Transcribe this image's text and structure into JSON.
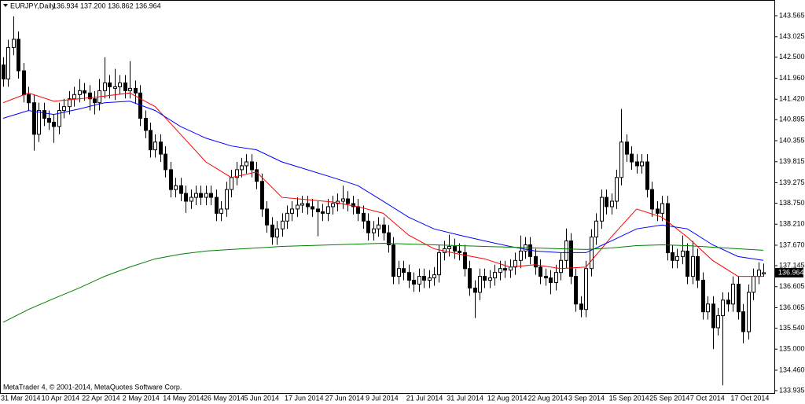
{
  "chart_data": {
    "type": "candlestick",
    "title": "EURJPY,Daily",
    "subtitle": "136.934 137.200 136.862 136.964",
    "credit": "MetaTrader 4, © 2001-2014, MetaQuotes Software Corp.",
    "grid": false,
    "up_color": "#ffffff",
    "down_color": "#000000",
    "last_price": 136.964,
    "ylim": [
      133.874,
      143.969
    ],
    "yticks": [
      {
        "value": 143.565,
        "label": "143.565"
      },
      {
        "value": 143.025,
        "label": "143.025"
      },
      {
        "value": 142.5,
        "label": "142.500"
      },
      {
        "value": 141.96,
        "label": "141.960"
      },
      {
        "value": 141.42,
        "label": "141.420"
      },
      {
        "value": 140.895,
        "label": "140.895"
      },
      {
        "value": 140.355,
        "label": "140.355"
      },
      {
        "value": 139.815,
        "label": "139.815"
      },
      {
        "value": 139.275,
        "label": "139.275"
      },
      {
        "value": 138.75,
        "label": "138.750"
      },
      {
        "value": 138.21,
        "label": "138.210"
      },
      {
        "value": 137.67,
        "label": "137.670"
      },
      {
        "value": 137.145,
        "label": "137.145"
      },
      {
        "value": 136.605,
        "label": "136.605"
      },
      {
        "value": 136.065,
        "label": "136.065"
      },
      {
        "value": 135.54,
        "label": "135.540"
      },
      {
        "value": 135.0,
        "label": "135.000"
      },
      {
        "value": 134.46,
        "label": "134.460"
      },
      {
        "value": 133.935,
        "label": "133.935"
      }
    ],
    "categories": [
      "31 Mar 2014",
      null,
      null,
      null,
      null,
      null,
      null,
      null,
      "10 Apr 2014",
      null,
      null,
      null,
      null,
      null,
      null,
      null,
      "22 Apr 2014",
      null,
      null,
      null,
      null,
      null,
      null,
      null,
      "2 May 2014",
      null,
      null,
      null,
      null,
      null,
      null,
      null,
      "14 May 2014",
      null,
      null,
      null,
      null,
      null,
      null,
      null,
      "26 May 2014",
      null,
      null,
      null,
      null,
      null,
      null,
      null,
      "5 Jun 2014",
      null,
      null,
      null,
      null,
      null,
      null,
      null,
      "17 Jun 2014",
      null,
      null,
      null,
      null,
      null,
      null,
      null,
      "27 Jun 2014",
      null,
      null,
      null,
      null,
      null,
      null,
      null,
      "9 Jul 2014",
      null,
      null,
      null,
      null,
      null,
      null,
      null,
      "21 Jul 2014",
      null,
      null,
      null,
      null,
      null,
      null,
      null,
      "31 Jul 2014",
      null,
      null,
      null,
      null,
      null,
      null,
      null,
      "12 Aug 2014",
      null,
      null,
      null,
      null,
      null,
      null,
      null,
      "22 Aug 2014",
      null,
      null,
      null,
      null,
      null,
      null,
      null,
      "3 Sep 2014",
      null,
      null,
      null,
      null,
      null,
      null,
      null,
      "15 Sep 2014",
      null,
      null,
      null,
      null,
      null,
      null,
      null,
      "25 Sep 2014",
      null,
      null,
      null,
      null,
      null,
      null,
      null,
      "7 Oct 2014",
      null,
      null,
      null,
      null,
      null,
      null,
      null,
      "17 Oct 2014",
      null,
      null,
      null,
      null,
      null,
      null
    ],
    "open": [
      142.3,
      141.94,
      142.75,
      142.96,
      142.15,
      141.54,
      141.33,
      140.52,
      141.13,
      140.93,
      140.83,
      140.72,
      141.13,
      141.23,
      141.43,
      141.54,
      141.64,
      141.58,
      141.43,
      141.33,
      141.64,
      141.84,
      141.7,
      141.74,
      141.84,
      141.64,
      141.7,
      141.58,
      140.93,
      140.62,
      140.12,
      140.32,
      140.01,
      139.61,
      139.1,
      139.2,
      139.0,
      138.8,
      138.9,
      139.0,
      138.9,
      139.0,
      138.9,
      138.49,
      138.6,
      139.1,
      139.41,
      139.61,
      139.71,
      139.81,
      139.61,
      139.31,
      138.6,
      138.19,
      137.88,
      138.09,
      138.29,
      138.49,
      138.6,
      138.7,
      138.74,
      138.66,
      138.6,
      138.53,
      138.49,
      138.66,
      138.74,
      138.8,
      138.86,
      138.74,
      138.66,
      138.49,
      138.29,
      137.99,
      138.09,
      138.19,
      137.99,
      137.68,
      136.87,
      137.07,
      136.97,
      136.77,
      136.67,
      136.87,
      136.77,
      136.83,
      136.91,
      137.48,
      137.58,
      137.64,
      137.52,
      137.48,
      137.07,
      136.57,
      136.46,
      136.87,
      136.77,
      136.83,
      136.97,
      137.07,
      137.03,
      137.11,
      137.28,
      137.52,
      137.68,
      137.38,
      137.11,
      136.87,
      136.83,
      136.71,
      136.97,
      137.28,
      137.78,
      136.87,
      136.16,
      136.02,
      137.07,
      137.88,
      138.29,
      138.9,
      138.66,
      138.8,
      139.41,
      140.32,
      140.01,
      139.81,
      139.71,
      139.81,
      139.1,
      138.6,
      138.49,
      138.74,
      137.48,
      137.28,
      137.38,
      137.52,
      136.87,
      137.38,
      136.77,
      135.96,
      136.16,
      135.55,
      135.86,
      136.26,
      136.16,
      136.67,
      135.96,
      135.45,
      136.46,
      136.87,
      136.934
    ],
    "high": [
      142.5,
      142.95,
      143.55,
      143.16,
      142.35,
      141.74,
      141.53,
      141.33,
      141.33,
      141.13,
      141.03,
      141.33,
      141.43,
      141.63,
      141.74,
      141.94,
      141.84,
      141.78,
      141.63,
      141.94,
      142.5,
      142.04,
      142.2,
      142.04,
      142.04,
      142.4,
      141.9,
      141.78,
      141.13,
      140.82,
      140.52,
      140.52,
      140.21,
      139.81,
      139.4,
      139.4,
      139.2,
      139.1,
      139.2,
      139.2,
      139.2,
      139.2,
      139.1,
      138.8,
      139.3,
      139.61,
      139.81,
      139.91,
      140.01,
      140.01,
      139.81,
      139.51,
      138.8,
      138.39,
      138.29,
      138.49,
      138.69,
      138.8,
      138.9,
      138.94,
      138.94,
      138.86,
      138.8,
      138.73,
      138.86,
      138.94,
      139.0,
      139.2,
      139.06,
      138.94,
      138.86,
      138.69,
      138.49,
      138.29,
      138.39,
      138.39,
      138.19,
      137.88,
      137.27,
      137.27,
      137.17,
      136.97,
      137.07,
      137.07,
      137.03,
      137.11,
      137.68,
      137.78,
      137.94,
      137.84,
      137.72,
      137.68,
      137.27,
      136.77,
      137.07,
      137.07,
      137.03,
      137.17,
      137.27,
      137.27,
      137.31,
      137.48,
      137.92,
      137.88,
      137.88,
      137.58,
      137.31,
      137.07,
      137.03,
      137.17,
      137.48,
      138.1,
      137.98,
      137.07,
      136.36,
      137.27,
      138.08,
      138.49,
      139.1,
      139.1,
      139.0,
      139.61,
      141.17,
      140.52,
      140.21,
      140.01,
      140.01,
      140.01,
      139.3,
      138.8,
      138.94,
      138.94,
      137.68,
      137.58,
      137.92,
      137.72,
      137.78,
      137.58,
      136.97,
      136.36,
      136.36,
      136.06,
      136.46,
      136.46,
      136.87,
      136.87,
      136.16,
      136.66,
      137.07,
      137.23,
      137.2
    ],
    "low": [
      141.74,
      141.74,
      142.55,
      141.95,
      141.34,
      141.13,
      140.1,
      140.32,
      140.73,
      140.63,
      140.3,
      140.52,
      140.93,
      141.03,
      141.23,
      141.34,
      141.38,
      141.13,
      141.03,
      141.13,
      141.44,
      141.44,
      141.4,
      141.54,
      141.44,
      141.44,
      141.3,
      140.73,
      140.42,
      139.92,
      139.92,
      139.81,
      139.41,
      138.9,
      138.9,
      138.8,
      138.5,
      138.6,
      138.7,
      138.7,
      138.7,
      138.7,
      138.29,
      138.29,
      138.4,
      138.9,
      139.21,
      139.41,
      139.51,
      139.41,
      139.11,
      138.4,
      137.99,
      137.68,
      137.68,
      137.89,
      138.09,
      138.29,
      138.4,
      138.5,
      138.46,
      138.4,
      137.9,
      138.29,
      138.29,
      138.46,
      138.54,
      138.6,
      138.54,
      138.46,
      138.29,
      138.09,
      137.79,
      137.79,
      137.89,
      137.79,
      137.48,
      136.67,
      136.67,
      136.77,
      136.57,
      136.47,
      136.47,
      136.57,
      136.57,
      136.63,
      136.71,
      137.28,
      137.38,
      137.32,
      137.28,
      136.87,
      136.37,
      135.8,
      136.26,
      136.57,
      136.57,
      136.63,
      136.77,
      136.83,
      136.83,
      136.91,
      137.08,
      137.32,
      137.18,
      136.91,
      136.67,
      136.63,
      136.41,
      136.51,
      136.77,
      137.08,
      136.67,
      135.96,
      135.82,
      135.82,
      136.87,
      137.68,
      138.09,
      138.46,
      138.46,
      138.6,
      139.21,
      139.81,
      139.61,
      139.51,
      139.51,
      138.9,
      138.4,
      138.29,
      138.29,
      137.28,
      137.08,
      137.08,
      137.18,
      136.67,
      136.67,
      136.57,
      135.76,
      135.76,
      135.0,
      135.35,
      134.07,
      135.96,
      135.96,
      135.76,
      135.15,
      135.25,
      136.26,
      136.67,
      136.862
    ],
    "close": [
      141.94,
      142.75,
      142.96,
      142.15,
      141.54,
      141.33,
      140.52,
      141.13,
      140.93,
      140.83,
      140.72,
      141.13,
      141.23,
      141.43,
      141.54,
      141.64,
      141.58,
      141.43,
      141.33,
      141.64,
      141.84,
      141.74,
      141.74,
      141.84,
      141.64,
      141.7,
      141.58,
      140.93,
      140.62,
      140.12,
      140.32,
      140.01,
      139.61,
      139.1,
      139.2,
      139.0,
      138.8,
      138.9,
      139.0,
      138.9,
      139.0,
      138.9,
      138.49,
      138.6,
      139.1,
      139.41,
      139.61,
      139.71,
      139.81,
      139.61,
      139.31,
      138.6,
      138.19,
      137.88,
      138.09,
      138.29,
      138.49,
      138.6,
      138.7,
      138.74,
      138.66,
      138.6,
      138.53,
      138.49,
      138.66,
      138.74,
      138.8,
      138.86,
      138.74,
      138.66,
      138.49,
      138.29,
      137.99,
      138.09,
      138.19,
      137.99,
      137.68,
      136.87,
      137.07,
      136.97,
      136.77,
      136.67,
      136.87,
      136.77,
      136.83,
      136.91,
      137.48,
      137.58,
      137.64,
      137.52,
      137.48,
      137.07,
      136.57,
      136.46,
      136.87,
      136.77,
      136.83,
      136.97,
      137.07,
      137.03,
      137.11,
      137.28,
      137.52,
      137.68,
      137.38,
      137.11,
      136.87,
      136.83,
      136.71,
      136.97,
      137.28,
      137.78,
      136.87,
      136.16,
      136.02,
      137.07,
      137.88,
      138.29,
      138.9,
      138.66,
      138.8,
      139.41,
      140.32,
      140.01,
      139.81,
      139.71,
      139.81,
      139.1,
      138.6,
      138.49,
      138.74,
      137.48,
      137.28,
      137.38,
      137.52,
      136.87,
      137.38,
      136.77,
      135.96,
      136.16,
      135.55,
      135.86,
      136.26,
      136.16,
      136.67,
      135.96,
      135.45,
      136.46,
      136.87,
      137.03,
      136.964
    ],
    "series": [
      {
        "color": "#ff0000",
        "x": [
          0,
          5,
          10,
          15,
          20,
          25,
          30,
          35,
          40,
          45,
          50,
          55,
          60,
          65,
          70,
          75,
          80,
          85,
          90,
          95,
          100,
          105,
          110,
          115,
          120,
          125,
          130,
          135,
          140,
          145,
          150
        ],
        "values": [
          141.33,
          141.58,
          141.37,
          141.43,
          141.5,
          141.58,
          141.23,
          140.52,
          139.81,
          139.41,
          139.55,
          138.9,
          138.84,
          138.78,
          138.66,
          138.49,
          137.93,
          137.58,
          137.44,
          137.32,
          137.11,
          137.17,
          137.07,
          137.11,
          137.88,
          138.6,
          138.39,
          137.88,
          137.28,
          136.87,
          136.87
        ]
      },
      {
        "color": "#0000ff",
        "x": [
          0,
          5,
          10,
          15,
          20,
          25,
          30,
          35,
          40,
          45,
          50,
          55,
          60,
          65,
          70,
          75,
          80,
          85,
          90,
          95,
          100,
          105,
          110,
          115,
          120,
          125,
          130,
          135,
          140,
          145,
          150
        ],
        "values": [
          140.93,
          141.13,
          141.03,
          141.17,
          141.33,
          141.37,
          141.13,
          140.72,
          140.42,
          140.22,
          140.12,
          139.81,
          139.61,
          139.41,
          139.2,
          138.8,
          138.39,
          138.09,
          137.93,
          137.78,
          137.64,
          137.52,
          137.48,
          137.48,
          137.78,
          138.09,
          138.19,
          138.09,
          137.68,
          137.38,
          137.28
        ]
      },
      {
        "color": "#008000",
        "x": [
          0,
          5,
          10,
          15,
          20,
          25,
          30,
          35,
          40,
          45,
          50,
          55,
          60,
          65,
          70,
          75,
          80,
          85,
          90,
          95,
          100,
          105,
          110,
          115,
          120,
          125,
          130,
          135,
          140,
          145,
          150
        ],
        "values": [
          135.69,
          136.02,
          136.3,
          136.57,
          136.87,
          137.11,
          137.32,
          137.44,
          137.52,
          137.56,
          137.6,
          137.64,
          137.66,
          137.68,
          137.7,
          137.72,
          137.7,
          137.68,
          137.66,
          137.64,
          137.62,
          137.6,
          137.58,
          137.56,
          137.6,
          137.66,
          137.68,
          137.66,
          137.62,
          137.58,
          137.54
        ]
      }
    ]
  }
}
